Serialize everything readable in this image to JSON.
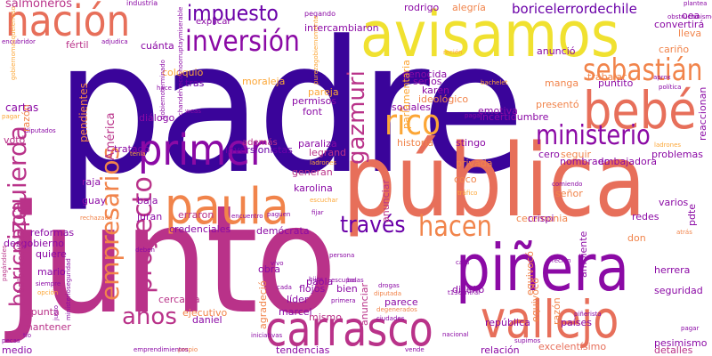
{
  "palette": {
    "deep_purple": "#3a049a",
    "purple": "#8b0aa5",
    "magenta": "#b93289",
    "pink": "#d6556d",
    "coral": "#e76f5a",
    "orange": "#f1844b",
    "amber": "#fca636",
    "yellow": "#f0e130",
    "violet": "#6a00a8"
  },
  "words": [
    {
      "text": "padre",
      "color": "#3a049a"
    },
    {
      "text": "junto",
      "color": "#b93289"
    },
    {
      "text": "pública",
      "color": "#e76f5a"
    },
    {
      "text": "avisamos",
      "color": "#f0e130"
    },
    {
      "text": "nación",
      "color": "#e76f5a"
    },
    {
      "text": "piñera",
      "color": "#8b0aa5"
    },
    {
      "text": "carrasco",
      "color": "#b93289"
    },
    {
      "text": "vallejo",
      "color": "#e76f5a"
    },
    {
      "text": "paula",
      "color": "#f1844b"
    },
    {
      "text": "primer",
      "color": "#8b0aa5"
    },
    {
      "text": "bebé",
      "color": "#e76f5a"
    },
    {
      "text": "inversión",
      "color": "#8b0aa5"
    },
    {
      "text": "impuesto",
      "color": "#6a00a8"
    },
    {
      "text": "sebastián",
      "color": "#f1844b"
    },
    {
      "text": "ministerio",
      "color": "#8b0aa5"
    },
    {
      "text": "rico",
      "color": "#fca636"
    },
    {
      "text": "hacen",
      "color": "#f1844b"
    },
    {
      "text": "través",
      "color": "#6a00a8"
    },
    {
      "text": "izquierda",
      "color": "#b93289"
    },
    {
      "text": "boricpapa",
      "color": "#b93289"
    },
    {
      "text": "gazmuri",
      "color": "#b93289"
    },
    {
      "text": "empresarios",
      "color": "#f1844b"
    },
    {
      "text": "proyecto",
      "color": "#b93289"
    },
    {
      "text": "años",
      "color": "#b93289"
    },
    {
      "text": "boricelerrordechile",
      "color": "#6a00a8"
    },
    {
      "text": "salmoneros",
      "color": "#b93289"
    },
    {
      "text": "industria",
      "color": "#8b0aa5"
    },
    {
      "text": "pegando",
      "color": "#8b0aa5"
    },
    {
      "text": "intercambiaron",
      "color": "#8b0aa5"
    },
    {
      "text": "rodrigo",
      "color": "#8b0aa5"
    },
    {
      "text": "alegría",
      "color": "#f1844b"
    },
    {
      "text": "convertirá",
      "color": "#8b0aa5"
    },
    {
      "text": "explicar",
      "color": "#8b0aa5"
    },
    {
      "text": "cuánta",
      "color": "#8b0aa5"
    },
    {
      "text": "fértil",
      "color": "#b93289"
    },
    {
      "text": "encubridor",
      "color": "#8b0aa5"
    },
    {
      "text": "adjudica",
      "color": "#8b0aa5"
    },
    {
      "text": "moraleja",
      "color": "#fca636"
    },
    {
      "text": "coloquio",
      "color": "#fca636"
    },
    {
      "text": "tras",
      "color": "#6a00a8"
    },
    {
      "text": "paternidad",
      "color": "#b93289"
    },
    {
      "text": "monsalve",
      "color": "#b93289"
    },
    {
      "text": "parlamentaria",
      "color": "#fca636"
    },
    {
      "text": "cartas",
      "color": "#8b0aa5"
    },
    {
      "text": "diálogo",
      "color": "#8b0aa5"
    },
    {
      "text": "votó",
      "color": "#b93289"
    },
    {
      "text": "tratado",
      "color": "#8b0aa5"
    },
    {
      "text": "además",
      "color": "#b93289"
    },
    {
      "text": "inversionistas",
      "color": "#6a00a8"
    },
    {
      "text": "paraliza",
      "color": "#8b0aa5"
    },
    {
      "text": "legrand",
      "color": "#b93289"
    },
    {
      "text": "generan",
      "color": "#b93289"
    },
    {
      "text": "karolina",
      "color": "#8b0aa5"
    },
    {
      "text": "raja",
      "color": "#8b0aa5"
    },
    {
      "text": "guay",
      "color": "#8b0aa5"
    },
    {
      "text": "baja",
      "color": "#8b0aa5"
    },
    {
      "text": "juran",
      "color": "#8b0aa5"
    },
    {
      "text": "erraron",
      "color": "#b93289"
    },
    {
      "text": "credenciales",
      "color": "#8b0aa5"
    },
    {
      "text": "demócrata",
      "color": "#8b0aa5"
    },
    {
      "text": "reformas",
      "color": "#8b0aa5"
    },
    {
      "text": "desgobierno",
      "color": "#8b0aa5"
    },
    {
      "text": "quiere",
      "color": "#8b0aa5"
    },
    {
      "text": "mario",
      "color": "#8b0aa5"
    },
    {
      "text": "apunta",
      "color": "#b93289"
    },
    {
      "text": "mantener",
      "color": "#b93289"
    },
    {
      "text": "medio",
      "color": "#8b0aa5"
    },
    {
      "text": "cercanía",
      "color": "#b93289"
    },
    {
      "text": "ejecutivo",
      "color": "#f1844b"
    },
    {
      "text": "daniel",
      "color": "#8b0aa5"
    },
    {
      "text": "marcel",
      "color": "#8b0aa5"
    },
    {
      "text": "tendencias",
      "color": "#8b0aa5"
    },
    {
      "text": "obra",
      "color": "#8b0aa5"
    },
    {
      "text": "flojos",
      "color": "#8b0aa5"
    },
    {
      "text": "líder",
      "color": "#8b0aa5"
    },
    {
      "text": "paola",
      "color": "#8b0aa5"
    },
    {
      "text": "mismo",
      "color": "#b93289"
    },
    {
      "text": "bien",
      "color": "#8b0aa5"
    },
    {
      "text": "anunciar",
      "color": "#b93289"
    },
    {
      "text": "agradeció",
      "color": "#f1844b"
    },
    {
      "text": "parece",
      "color": "#8b0aa5"
    },
    {
      "text": "relación",
      "color": "#8b0aa5"
    },
    {
      "text": "república",
      "color": "#8b0aa5"
    },
    {
      "text": "países",
      "color": "#8b0aa5"
    },
    {
      "text": "excelentísimo",
      "color": "#e76f5a"
    },
    {
      "text": "pesimismo",
      "color": "#8b0aa5"
    },
    {
      "text": "detalles",
      "color": "#b93289"
    },
    {
      "text": "seguridad",
      "color": "#8b0aa5"
    },
    {
      "text": "herrera",
      "color": "#8b0aa5"
    },
    {
      "text": "redes",
      "color": "#8b0aa5"
    },
    {
      "text": "varios",
      "color": "#8b0aa5"
    },
    {
      "text": "embajadora",
      "color": "#8b0aa5"
    },
    {
      "text": "nombrado",
      "color": "#8b0aa5"
    },
    {
      "text": "ceremonia",
      "color": "#f1844b"
    },
    {
      "text": "crispi",
      "color": "#8b0aa5"
    },
    {
      "text": "señor",
      "color": "#f1844b"
    },
    {
      "text": "coco",
      "color": "#f1844b"
    },
    {
      "text": "privada",
      "color": "#f1844b"
    },
    {
      "text": "historia",
      "color": "#f1844b"
    },
    {
      "text": "stingo",
      "color": "#8b0aa5"
    },
    {
      "text": "emotiva",
      "color": "#8b0aa5"
    },
    {
      "text": "incertidumbre",
      "color": "#8b0aa5"
    },
    {
      "text": "presentó",
      "color": "#f1844b"
    },
    {
      "text": "ideológico",
      "color": "#f1844b"
    },
    {
      "text": "karen",
      "color": "#8b0aa5"
    },
    {
      "text": "serios",
      "color": "#8b0aa5"
    },
    {
      "text": "genocida",
      "color": "#8b0aa5"
    },
    {
      "text": "sociales",
      "color": "#8b0aa5"
    },
    {
      "text": "font",
      "color": "#8b0aa5"
    },
    {
      "text": "permisos",
      "color": "#8b0aa5"
    },
    {
      "text": "pareja",
      "color": "#fca636"
    },
    {
      "text": "anunció",
      "color": "#8b0aa5"
    },
    {
      "text": "trabajar",
      "color": "#f1844b"
    },
    {
      "text": "manga",
      "color": "#f1844b"
    },
    {
      "text": "puntito",
      "color": "#8b0aa5"
    },
    {
      "text": "cariño",
      "color": "#f1844b"
    },
    {
      "text": "oea",
      "color": "#8b0aa5"
    },
    {
      "text": "lleva",
      "color": "#f1844b"
    },
    {
      "text": "reaccionan",
      "color": "#8b0aa5"
    },
    {
      "text": "problemas",
      "color": "#8b0aa5"
    },
    {
      "text": "pdte",
      "color": "#8b0aa5"
    },
    {
      "text": "cero",
      "color": "#8b0aa5"
    },
    {
      "text": "seguir",
      "color": "#f1844b"
    },
    {
      "text": "don",
      "color": "#f1844b"
    },
    {
      "text": "ambiente",
      "color": "#8b0aa5"
    },
    {
      "text": "equivocó",
      "color": "#f1844b"
    },
    {
      "text": "diseño",
      "color": "#8b0aa5"
    },
    {
      "text": "razón",
      "color": "#f1844b"
    },
    {
      "text": "pendientes",
      "color": "#f1844b"
    },
    {
      "text": "América",
      "color": "#b93289"
    },
    {
      "text": "baloncestista",
      "color": "#b93289"
    },
    {
      "text": "pagándoles",
      "color": "#b93289"
    },
    {
      "text": "justo",
      "color": "#8b0aa5"
    },
    {
      "text": "ministerioseguridad",
      "color": "#8b0aa5"
    },
    {
      "text": "chandehrecochoorruptaymiserable",
      "color": "#8b0aa5"
    },
    {
      "text": "gobiernoterminado",
      "color": "#8b0aa5"
    },
    {
      "text": "gobiernomasquelerroso",
      "color": "#fca636"
    },
    {
      "text": "purezagobiernomente",
      "color": "#fca636"
    },
    {
      "text": "quisieron",
      "color": "#fca636"
    },
    {
      "text": "recién",
      "color": "#fca636"
    },
    {
      "text": "bachelet",
      "color": "#fca636"
    },
    {
      "text": "pagar",
      "color": "#8b0aa5"
    },
    {
      "text": "ladrones",
      "color": "#fca636"
    },
    {
      "text": "plantea",
      "color": "#8b0aa5"
    },
    {
      "text": "obstrucionismo",
      "color": "#8b0aa5"
    },
    {
      "text": "política",
      "color": "#8b0aa5"
    },
    {
      "text": "aprox",
      "color": "#8b0aa5"
    },
    {
      "text": "grandes",
      "color": "#fca636"
    },
    {
      "text": "caer",
      "color": "#8b0aa5"
    },
    {
      "text": "pagar",
      "color": "#8b0aa5"
    },
    {
      "text": "piñerista",
      "color": "#8b0aa5"
    },
    {
      "text": "supimos",
      "color": "#8b0aa5"
    },
    {
      "text": "vende",
      "color": "#8b0aa5"
    },
    {
      "text": "propio",
      "color": "#f1844b"
    },
    {
      "text": "iniciativas",
      "color": "#8b0aa5"
    },
    {
      "text": "emprendimientos",
      "color": "#8b0aa5"
    },
    {
      "text": "cada",
      "color": "#8b0aa5"
    },
    {
      "text": "primera",
      "color": "#8b0aa5"
    },
    {
      "text": "ciudades",
      "color": "#8b0aa5"
    },
    {
      "text": "degenerados",
      "color": "#f1844b"
    },
    {
      "text": "nacional",
      "color": "#8b0aa5"
    },
    {
      "text": "drogas",
      "color": "#8b0aa5"
    },
    {
      "text": "diputada",
      "color": "#f1844b"
    },
    {
      "text": "balas",
      "color": "#8b0aa5"
    },
    {
      "text": "escupas",
      "color": "#8b0aa5"
    },
    {
      "text": "cara",
      "color": "#8b0aa5"
    },
    {
      "text": "t13central",
      "color": "#8b0aa5"
    },
    {
      "text": "hijos",
      "color": "#8b0aa5"
    },
    {
      "text": "vivo",
      "color": "#8b0aa5"
    },
    {
      "text": "persona",
      "color": "#8b0aa5"
    },
    {
      "text": "deben",
      "color": "#8b0aa5"
    },
    {
      "text": "opción",
      "color": "#fca636"
    },
    {
      "text": "siempre",
      "color": "#8b0aa5"
    },
    {
      "text": "rechazado",
      "color": "#f1844b"
    },
    {
      "text": "encuentro",
      "color": "#8b0aa5"
    },
    {
      "text": "paguen",
      "color": "#8b0aa5"
    },
    {
      "text": "escuchar",
      "color": "#fca636"
    },
    {
      "text": "fijar",
      "color": "#8b0aa5"
    },
    {
      "text": "riesgos",
      "color": "#fca636"
    },
    {
      "text": "tráfico",
      "color": "#fca636"
    },
    {
      "text": "temas",
      "color": "#fca636"
    },
    {
      "text": "comiendo",
      "color": "#8b0aa5"
    },
    {
      "text": "recién",
      "color": "#8b0aa5"
    },
    {
      "text": "weas",
      "color": "#8b0aa5"
    },
    {
      "text": "hace",
      "color": "#8b0aa5"
    },
    {
      "text": "nunca",
      "color": "#8b0aa5"
    },
    {
      "text": "tenía",
      "color": "#fca636"
    },
    {
      "text": "pagar",
      "color": "#fca636"
    },
    {
      "text": "diputados",
      "color": "#8b0aa5"
    },
    {
      "text": "pecas",
      "color": "#8b0aa5"
    },
    {
      "text": "tío",
      "color": "#8b0aa5"
    },
    {
      "text": "cielo",
      "color": "#8b0aa5"
    },
    {
      "text": "cacho",
      "color": "#fca636"
    },
    {
      "text": "precio",
      "color": "#f1844b"
    },
    {
      "text": "corrupto",
      "color": "#fca636"
    },
    {
      "text": "estado",
      "color": "#8b0aa5"
    },
    {
      "text": "atrás",
      "color": "#f1844b"
    }
  ]
}
